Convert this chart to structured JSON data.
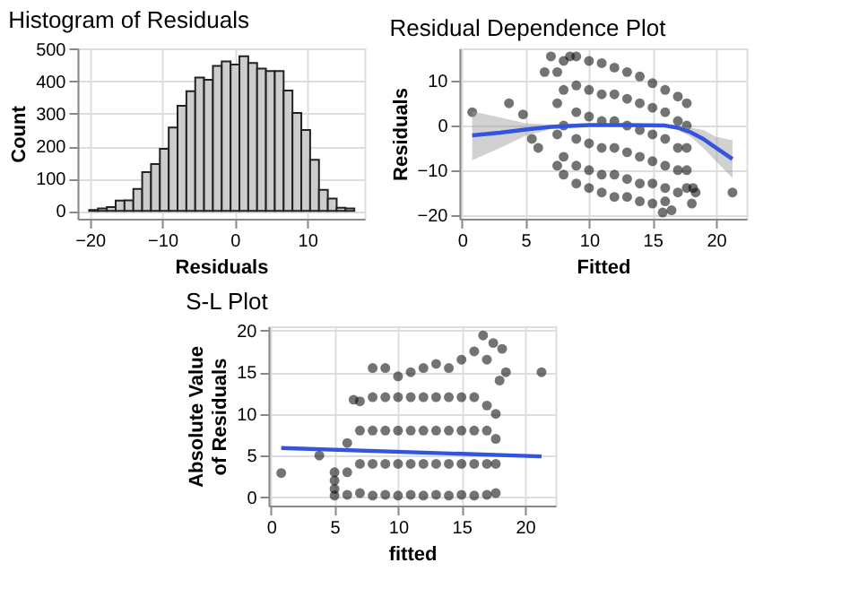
{
  "chart_data": [
    {
      "type": "histogram",
      "title": "Histogram of Residuals",
      "xlabel": "Residuals",
      "ylabel": "Count",
      "bins": [
        -20.1,
        -18.88,
        -17.66,
        -16.44,
        -15.22,
        -14.0,
        -12.78,
        -11.56,
        -10.34,
        -9.12,
        -7.9,
        -6.68,
        -5.46,
        -4.24,
        -3.02,
        -1.8,
        -0.58,
        0.64,
        1.86,
        3.08,
        4.3,
        5.52,
        6.74,
        7.96,
        9.18,
        10.4,
        11.62,
        12.84,
        14.06,
        15.28,
        16.5
      ],
      "values": [
        3,
        8,
        12,
        32,
        33,
        68,
        120,
        145,
        192,
        258,
        325,
        370,
        412,
        405,
        448,
        462,
        452,
        478,
        457,
        440,
        432,
        432,
        372,
        303,
        250,
        158,
        65,
        38,
        10,
        8
      ],
      "color": "#cccccc",
      "xlim": [
        -21.7,
        17.9
      ],
      "xticks": [
        -20,
        -10,
        0,
        10
      ],
      "ylim": [
        -24,
        502
      ],
      "yticks": [
        0,
        100,
        200,
        300,
        400,
        500
      ],
      "grid": true
    },
    {
      "type": "scatter",
      "title": "Residual Dependence Plot",
      "xlabel": "Fitted",
      "ylabel": "Residuals",
      "grid": true,
      "xlim": [
        -0.2,
        22.4
      ],
      "xticks": [
        0,
        5,
        10,
        15,
        20
      ],
      "ylim": [
        -20.9,
        17.3
      ],
      "yticks": [
        -20,
        -10,
        0,
        10
      ],
      "series": [
        {
          "type": "scatter",
          "color": "#000000",
          "marker": "circle",
          "x": [
            7.5,
            7.5,
            7.5,
            7.5,
            8,
            8,
            8,
            8,
            8,
            9,
            9,
            9,
            9,
            9,
            9,
            10,
            10,
            10,
            10,
            10,
            10,
            11,
            11,
            11,
            11,
            11,
            11,
            12,
            12,
            12,
            12,
            12,
            12,
            13,
            13,
            13,
            13,
            13,
            13,
            14,
            14,
            14,
            14,
            14,
            14,
            15,
            15,
            15,
            15,
            15,
            15,
            16,
            16,
            16,
            16,
            16,
            16,
            17,
            17,
            17,
            17,
            17,
            17.7,
            17.7,
            17.7,
            17.7,
            17.7,
            0.8,
            3.7,
            4.8,
            5.5,
            6,
            6.5,
            7,
            8.5,
            18.2,
            18.4,
            18.1,
            21.3,
            16.5,
            15.8
          ],
          "values": [
            12,
            5,
            -2,
            -9,
            14.5,
            8,
            0,
            -7,
            -11,
            15.5,
            9,
            3,
            -3,
            -9,
            -13,
            14.5,
            8,
            2,
            -4,
            -10,
            -14,
            14,
            7,
            1,
            -5,
            -11,
            -15,
            13,
            7,
            1,
            -5,
            -11,
            -16,
            12,
            6,
            0,
            -6,
            -12,
            -16,
            11,
            5,
            -1,
            -7,
            -13,
            -17,
            9.5,
            4,
            -2,
            -8,
            -13,
            -17.5,
            8,
            3,
            -3,
            -9,
            -14,
            -17,
            6.5,
            1,
            -5,
            -10,
            -15,
            5,
            0,
            -5,
            -10,
            -14,
            3,
            5,
            2.5,
            -3,
            -5,
            12,
            15.5,
            15.5,
            -14,
            -15,
            -17.5,
            -15,
            -19,
            -19.5
          ]
        },
        {
          "type": "line",
          "color": "#3355dd",
          "x": [
            0.8,
            3,
            5,
            7,
            10,
            13,
            16,
            17,
            18,
            19,
            20,
            21.3
          ],
          "values": [
            -2.2,
            -1.6,
            -0.9,
            -0.3,
            0.1,
            0.1,
            0,
            -0.5,
            -1.5,
            -3,
            -5,
            -7.5
          ],
          "marker": "none",
          "lower": [
            -7.8,
            -5,
            -2.3,
            -0.8,
            -0.2,
            -0.2,
            -0.3,
            -1,
            -2.5,
            -5,
            -8,
            -11.8
          ],
          "upper": [
            3.2,
            1.8,
            0.5,
            0.2,
            0.4,
            0.4,
            0.3,
            0,
            -0.5,
            -1,
            -2.5,
            -3.3
          ]
        }
      ]
    },
    {
      "type": "scatter",
      "title": "S-L Plot",
      "xlabel": "fitted",
      "ylabel": "Absolute Value\nof Residuals",
      "grid": true,
      "xlim": [
        -0.2,
        22.4
      ],
      "xticks": [
        0,
        5,
        10,
        15,
        20
      ],
      "ylim": [
        -1,
        20.5
      ],
      "yticks": [
        0,
        5,
        10,
        15,
        20
      ],
      "series": [
        {
          "type": "scatter",
          "color": "#000000",
          "marker": "circle",
          "x": [
            5,
            5,
            5,
            5,
            6,
            6,
            6,
            7,
            7,
            7,
            7,
            8,
            8,
            8,
            8,
            8,
            9,
            9,
            9,
            9,
            9,
            10,
            10,
            10,
            10,
            10,
            11,
            11,
            11,
            11,
            11,
            12,
            12,
            12,
            12,
            12,
            13,
            13,
            13,
            13,
            13,
            14,
            14,
            14,
            14,
            14,
            15,
            15,
            15,
            15,
            15,
            16,
            16,
            16,
            16,
            16,
            17,
            17,
            17,
            17,
            17,
            17.7,
            17.7,
            17.7,
            17.7,
            0.8,
            3.8,
            6.5,
            16.7,
            18.2,
            18.5,
            18,
            21.3,
            17.5
          ],
          "values": [
            0.2,
            1,
            2,
            3,
            0.3,
            3,
            6.5,
            0.5,
            4,
            8,
            11.5,
            0.2,
            4,
            8,
            12,
            15.5,
            0.3,
            4,
            8,
            12,
            15.5,
            0.2,
            4,
            8,
            12,
            14.5,
            0.3,
            4,
            8,
            12,
            15,
            0.2,
            4,
            8,
            12,
            15.5,
            0.3,
            4,
            8,
            12,
            16,
            0.2,
            4,
            8,
            12,
            15.5,
            0.3,
            4,
            8,
            12,
            16.5,
            0.2,
            4,
            8,
            12,
            17.5,
            0.3,
            4,
            8,
            11,
            16.5,
            0.5,
            4,
            7,
            10,
            2.9,
            5,
            11.7,
            19.4,
            17.8,
            15,
            14,
            15,
            18.5
          ]
        },
        {
          "type": "line",
          "color": "#3355dd",
          "x": [
            0.8,
            21.3
          ],
          "values": [
            5.9,
            4.9
          ],
          "marker": "none"
        }
      ]
    }
  ]
}
